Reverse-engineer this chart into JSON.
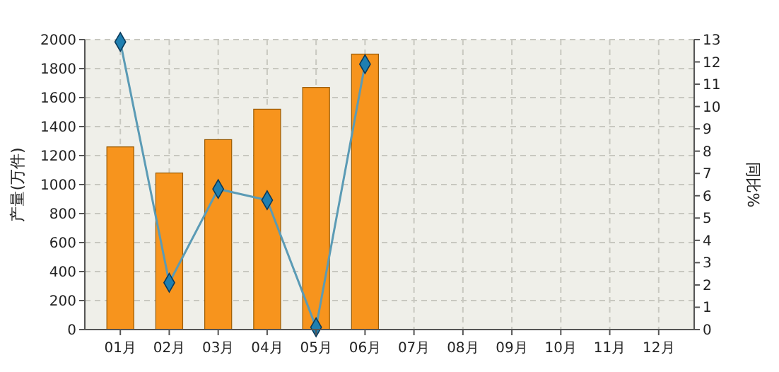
{
  "chart_data": {
    "type": "bar",
    "ylabel": "产量(万件)",
    "y2label": "同比%",
    "categories": [
      "01月",
      "02月",
      "03月",
      "04月",
      "05月",
      "06月",
      "07月",
      "08月",
      "09月",
      "10月",
      "11月",
      "12月"
    ],
    "series": [
      {
        "color": "#f7941d",
        "values": [
          1260,
          1080,
          1310,
          1520,
          1670,
          1900,
          null,
          null,
          null,
          null,
          null,
          null
        ]
      },
      {
        "type": "line",
        "axis": "y2",
        "color": "#5b9bb5",
        "marker": "diamond",
        "values": [
          12.9,
          2.1,
          6.3,
          5.8,
          0.1,
          11.9,
          null,
          null,
          null,
          null,
          null,
          null
        ]
      }
    ],
    "ylim": [
      0,
      2000
    ],
    "yticks": [
      0,
      200,
      400,
      600,
      800,
      1000,
      1200,
      1400,
      1600,
      1800,
      2000
    ],
    "y2lim": [
      0,
      13
    ],
    "y2ticks": [
      0,
      1,
      2,
      3,
      4,
      5,
      6,
      7,
      8,
      9,
      10,
      11,
      12,
      13
    ],
    "grid": true
  }
}
